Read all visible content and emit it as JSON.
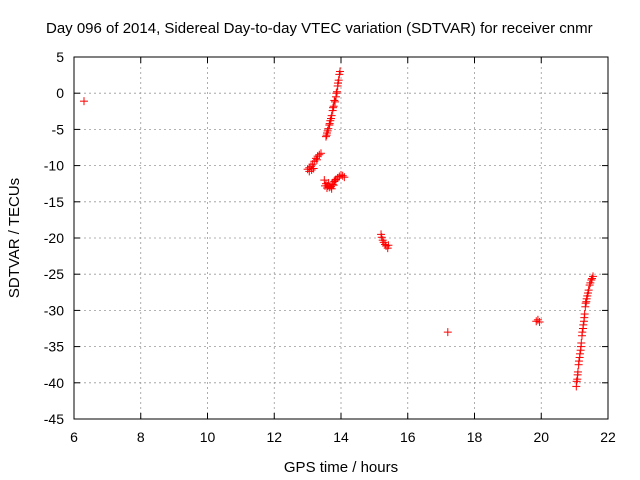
{
  "chart_data": {
    "type": "scatter",
    "title": "Day 096 of 2014, Sidereal Day-to-day VTEC variation (SDTVAR) for receiver cnmr",
    "xlabel": "GPS time / hours",
    "ylabel": "SDTVAR / TECUs",
    "xlim": [
      6,
      22
    ],
    "ylim": [
      -45,
      5
    ],
    "xticks": [
      6,
      8,
      10,
      12,
      14,
      16,
      18,
      20,
      22
    ],
    "yticks": [
      -45,
      -40,
      -35,
      -30,
      -25,
      -20,
      -15,
      -10,
      -5,
      0,
      5
    ],
    "grid": true,
    "marker": "+",
    "marker_color": "#ff0000",
    "series": [
      {
        "points": [
          [
            6.3,
            -1.1
          ],
          [
            13.0,
            -10.5
          ],
          [
            13.05,
            -10.3
          ],
          [
            13.1,
            -10.1
          ],
          [
            13.15,
            -9.8
          ],
          [
            13.2,
            -9.4
          ],
          [
            13.25,
            -9.0
          ],
          [
            13.3,
            -8.7
          ],
          [
            13.35,
            -8.5
          ],
          [
            13.4,
            -8.3
          ],
          [
            13.05,
            -10.8
          ],
          [
            13.12,
            -10.6
          ],
          [
            13.18,
            -10.4
          ],
          [
            13.28,
            -9.2
          ],
          [
            13.55,
            -6.0
          ],
          [
            13.58,
            -5.5
          ],
          [
            13.62,
            -4.9
          ],
          [
            13.65,
            -4.4
          ],
          [
            13.68,
            -3.8
          ],
          [
            13.72,
            -3.1
          ],
          [
            13.75,
            -2.4
          ],
          [
            13.78,
            -1.8
          ],
          [
            13.82,
            -1.2
          ],
          [
            13.85,
            -0.5
          ],
          [
            13.88,
            0.2
          ],
          [
            13.9,
            1.0
          ],
          [
            13.93,
            1.8
          ],
          [
            13.95,
            2.6
          ],
          [
            13.97,
            3.0
          ],
          [
            13.57,
            -5.8
          ],
          [
            13.6,
            -5.2
          ],
          [
            13.66,
            -4.2
          ],
          [
            13.7,
            -3.5
          ],
          [
            13.76,
            -2.0
          ],
          [
            13.8,
            -1.0
          ],
          [
            13.86,
            0.0
          ],
          [
            13.91,
            1.4
          ],
          [
            13.5,
            -12.0
          ],
          [
            13.55,
            -12.5
          ],
          [
            13.6,
            -12.8
          ],
          [
            13.65,
            -13.0
          ],
          [
            13.7,
            -12.9
          ],
          [
            13.75,
            -12.6
          ],
          [
            13.8,
            -12.2
          ],
          [
            13.85,
            -11.9
          ],
          [
            13.52,
            -12.8
          ],
          [
            13.58,
            -13.1
          ],
          [
            13.63,
            -12.4
          ],
          [
            13.72,
            -13.2
          ],
          [
            13.78,
            -12.7
          ],
          [
            13.82,
            -12.0
          ],
          [
            13.9,
            -11.7
          ],
          [
            13.95,
            -11.5
          ],
          [
            14.0,
            -11.3
          ],
          [
            14.05,
            -11.4
          ],
          [
            14.1,
            -11.6
          ],
          [
            15.2,
            -19.5
          ],
          [
            15.22,
            -19.9
          ],
          [
            15.25,
            -20.3
          ],
          [
            15.28,
            -20.6
          ],
          [
            15.32,
            -20.9
          ],
          [
            15.35,
            -21.1
          ],
          [
            15.4,
            -21.4
          ],
          [
            15.42,
            -21.0
          ],
          [
            17.2,
            -33.0
          ],
          [
            19.85,
            -31.5
          ],
          [
            19.9,
            -31.3
          ],
          [
            19.95,
            -31.6
          ],
          [
            21.05,
            -40.5
          ],
          [
            21.08,
            -39.5
          ],
          [
            21.1,
            -38.5
          ],
          [
            21.12,
            -37.5
          ],
          [
            21.15,
            -36.5
          ],
          [
            21.18,
            -35.5
          ],
          [
            21.2,
            -34.5
          ],
          [
            21.22,
            -33.5
          ],
          [
            21.25,
            -32.5
          ],
          [
            21.28,
            -31.5
          ],
          [
            21.3,
            -30.5
          ],
          [
            21.32,
            -29.5
          ],
          [
            21.35,
            -28.8
          ],
          [
            21.38,
            -28.0
          ],
          [
            21.42,
            -27.2
          ],
          [
            21.45,
            -26.5
          ],
          [
            21.5,
            -25.8
          ],
          [
            21.55,
            -25.3
          ],
          [
            21.06,
            -39.8
          ],
          [
            21.09,
            -38.9
          ],
          [
            21.13,
            -37.0
          ],
          [
            21.16,
            -36.0
          ],
          [
            21.19,
            -35.0
          ],
          [
            21.23,
            -33.0
          ],
          [
            21.26,
            -32.0
          ],
          [
            21.29,
            -31.0
          ],
          [
            21.33,
            -29.0
          ],
          [
            21.36,
            -28.4
          ],
          [
            21.4,
            -27.6
          ],
          [
            21.47,
            -26.2
          ],
          [
            21.52,
            -25.6
          ]
        ]
      }
    ]
  }
}
